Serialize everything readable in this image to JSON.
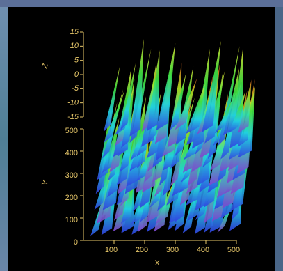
{
  "chart_data": {
    "type": "surface3d",
    "xlabel": "X",
    "ylabel": "Y",
    "zlabel": "Z",
    "xlim": [
      0,
      500
    ],
    "xticks": [
      100,
      200,
      300,
      400,
      500
    ],
    "ylim": [
      0,
      500
    ],
    "yticks": [
      0,
      100,
      200,
      300,
      400,
      500
    ],
    "zlim": [
      -15,
      15
    ],
    "zticks": [
      -15,
      -10,
      -5,
      0,
      5,
      10,
      15
    ]
  }
}
